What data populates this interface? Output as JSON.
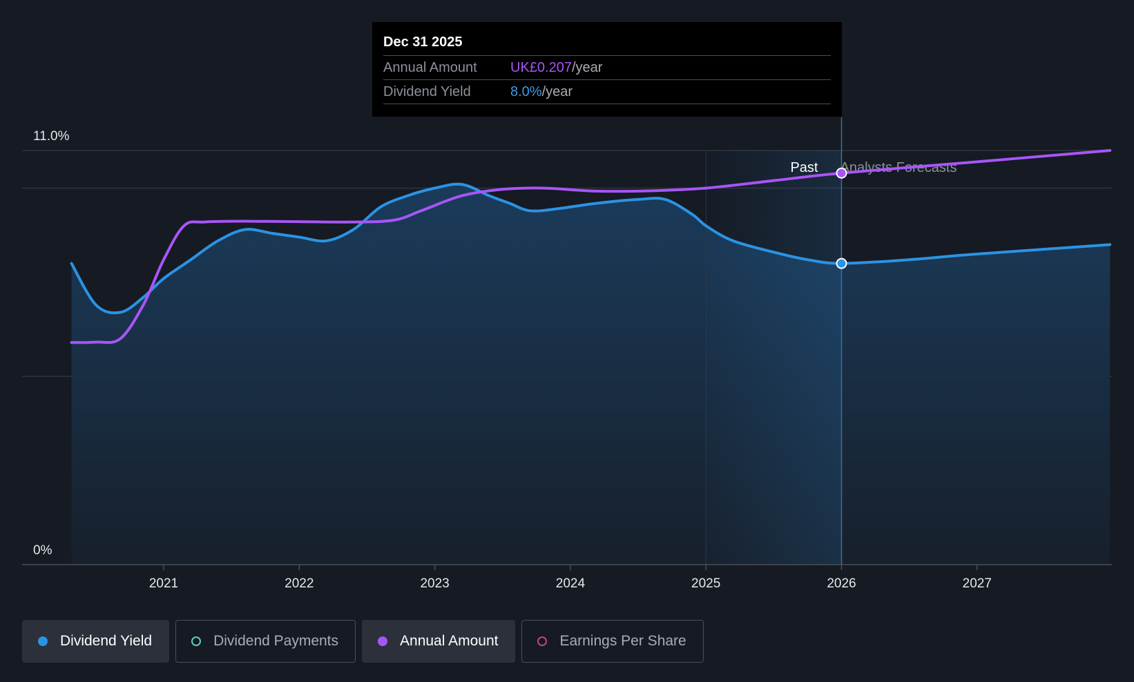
{
  "chart_data": {
    "type": "line",
    "x_range": [
      2020.15,
      2027.98
    ],
    "y_range": [
      0,
      11.0
    ],
    "y_ticks": [
      {
        "value": 11.0,
        "label": "11.0%"
      },
      {
        "value": 0,
        "label": "0%"
      }
    ],
    "gridlines": [
      11.0,
      10.0,
      5.0
    ],
    "x_ticks": [
      {
        "value": 2021,
        "label": "2021"
      },
      {
        "value": 2022,
        "label": "2022"
      },
      {
        "value": 2023,
        "label": "2023"
      },
      {
        "value": 2024,
        "label": "2024"
      },
      {
        "value": 2025,
        "label": "2025"
      },
      {
        "value": 2026,
        "label": "2026"
      },
      {
        "value": 2027,
        "label": "2027"
      }
    ],
    "past_region": {
      "start": 2025.0,
      "end": 2026.0,
      "label": "Past"
    },
    "forecast_label": "Analysts Forecasts",
    "series": [
      {
        "name": "Dividend Yield",
        "color": "#2b93e4",
        "filled": true,
        "points": [
          [
            2020.32,
            8.0
          ],
          [
            2020.5,
            6.9
          ],
          [
            2020.68,
            6.7
          ],
          [
            2020.85,
            7.1
          ],
          [
            2021.0,
            7.6
          ],
          [
            2021.2,
            8.1
          ],
          [
            2021.4,
            8.6
          ],
          [
            2021.6,
            8.9
          ],
          [
            2021.8,
            8.8
          ],
          [
            2022.0,
            8.7
          ],
          [
            2022.2,
            8.6
          ],
          [
            2022.4,
            8.9
          ],
          [
            2022.6,
            9.5
          ],
          [
            2022.8,
            9.8
          ],
          [
            2023.0,
            10.0
          ],
          [
            2023.2,
            10.1
          ],
          [
            2023.4,
            9.8
          ],
          [
            2023.55,
            9.6
          ],
          [
            2023.7,
            9.4
          ],
          [
            2023.9,
            9.45
          ],
          [
            2024.2,
            9.6
          ],
          [
            2024.5,
            9.7
          ],
          [
            2024.7,
            9.7
          ],
          [
            2024.9,
            9.3
          ],
          [
            2025.0,
            9.0
          ],
          [
            2025.2,
            8.6
          ],
          [
            2025.5,
            8.3
          ],
          [
            2025.75,
            8.1
          ],
          [
            2026.0,
            8.0
          ],
          [
            2026.5,
            8.1
          ],
          [
            2027.0,
            8.25
          ],
          [
            2027.98,
            8.5
          ]
        ]
      },
      {
        "name": "Annual Amount",
        "color": "#a855f7",
        "filled": false,
        "points": [
          [
            2020.32,
            5.9
          ],
          [
            2020.5,
            5.91
          ],
          [
            2020.68,
            6.0
          ],
          [
            2020.85,
            6.9
          ],
          [
            2021.0,
            8.1
          ],
          [
            2021.15,
            9.0
          ],
          [
            2021.3,
            9.1
          ],
          [
            2021.6,
            9.12
          ],
          [
            2022.0,
            9.11
          ],
          [
            2022.4,
            9.1
          ],
          [
            2022.7,
            9.15
          ],
          [
            2022.9,
            9.4
          ],
          [
            2023.2,
            9.8
          ],
          [
            2023.5,
            9.97
          ],
          [
            2023.8,
            10.0
          ],
          [
            2024.2,
            9.92
          ],
          [
            2024.6,
            9.93
          ],
          [
            2025.0,
            10.0
          ],
          [
            2025.5,
            10.2
          ],
          [
            2026.0,
            10.4
          ],
          [
            2027.0,
            10.7
          ],
          [
            2027.98,
            11.0
          ]
        ]
      }
    ],
    "hover": {
      "x": 2026.0,
      "yield": 8.0,
      "amount": 10.4
    }
  },
  "tooltip": {
    "date": "Dec 31 2025",
    "rows": [
      {
        "key": "Annual Amount",
        "value": "UK£0.207",
        "unit": "/year"
      },
      {
        "key": "Dividend Yield",
        "value": "8.0%",
        "unit": "/year"
      }
    ]
  },
  "legend": [
    {
      "label": "Dividend Yield",
      "color": "#2b93e4",
      "active": true
    },
    {
      "label": "Dividend Payments",
      "color": "#5fcfc0",
      "active": false
    },
    {
      "label": "Annual Amount",
      "color": "#a855f7",
      "active": true
    },
    {
      "label": "Earnings Per Share",
      "color": "#c2457a",
      "active": false
    }
  ]
}
